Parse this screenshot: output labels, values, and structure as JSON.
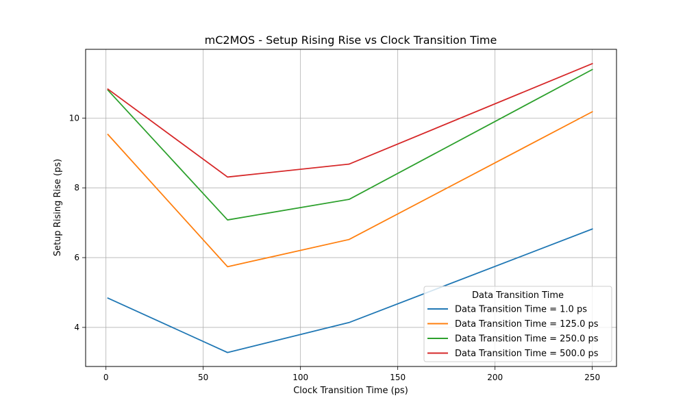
{
  "chart_data": {
    "type": "line",
    "title": "mC2MOS - Setup Rising Rise vs Clock Transition Time",
    "xlabel": "Clock Transition Time (ps)",
    "ylabel": "Setup Rising Rise (ps)",
    "xlim": [
      -10.45,
      262.45
    ],
    "ylim": [
      2.88,
      11.97
    ],
    "xticks": [
      0,
      50,
      100,
      150,
      200,
      250
    ],
    "yticks": [
      4,
      6,
      8,
      10
    ],
    "grid": true,
    "legend": {
      "title": "Data Transition Time",
      "placement": "lower-right"
    },
    "x": [
      1.0,
      62.5,
      125.0,
      250.0
    ],
    "series": [
      {
        "name": "Data Transition Time = 1.0 ps",
        "color": "#1f77b4",
        "values": [
          4.84,
          3.28,
          4.14,
          6.82
        ]
      },
      {
        "name": "Data Transition Time = 125.0 ps",
        "color": "#ff7f0e",
        "values": [
          9.53,
          5.74,
          6.52,
          10.18
        ]
      },
      {
        "name": "Data Transition Time = 250.0 ps",
        "color": "#2ca02c",
        "values": [
          10.8,
          7.08,
          7.67,
          11.39
        ]
      },
      {
        "name": "Data Transition Time = 500.0 ps",
        "color": "#d62728",
        "values": [
          10.83,
          8.31,
          8.68,
          11.56
        ]
      }
    ]
  }
}
